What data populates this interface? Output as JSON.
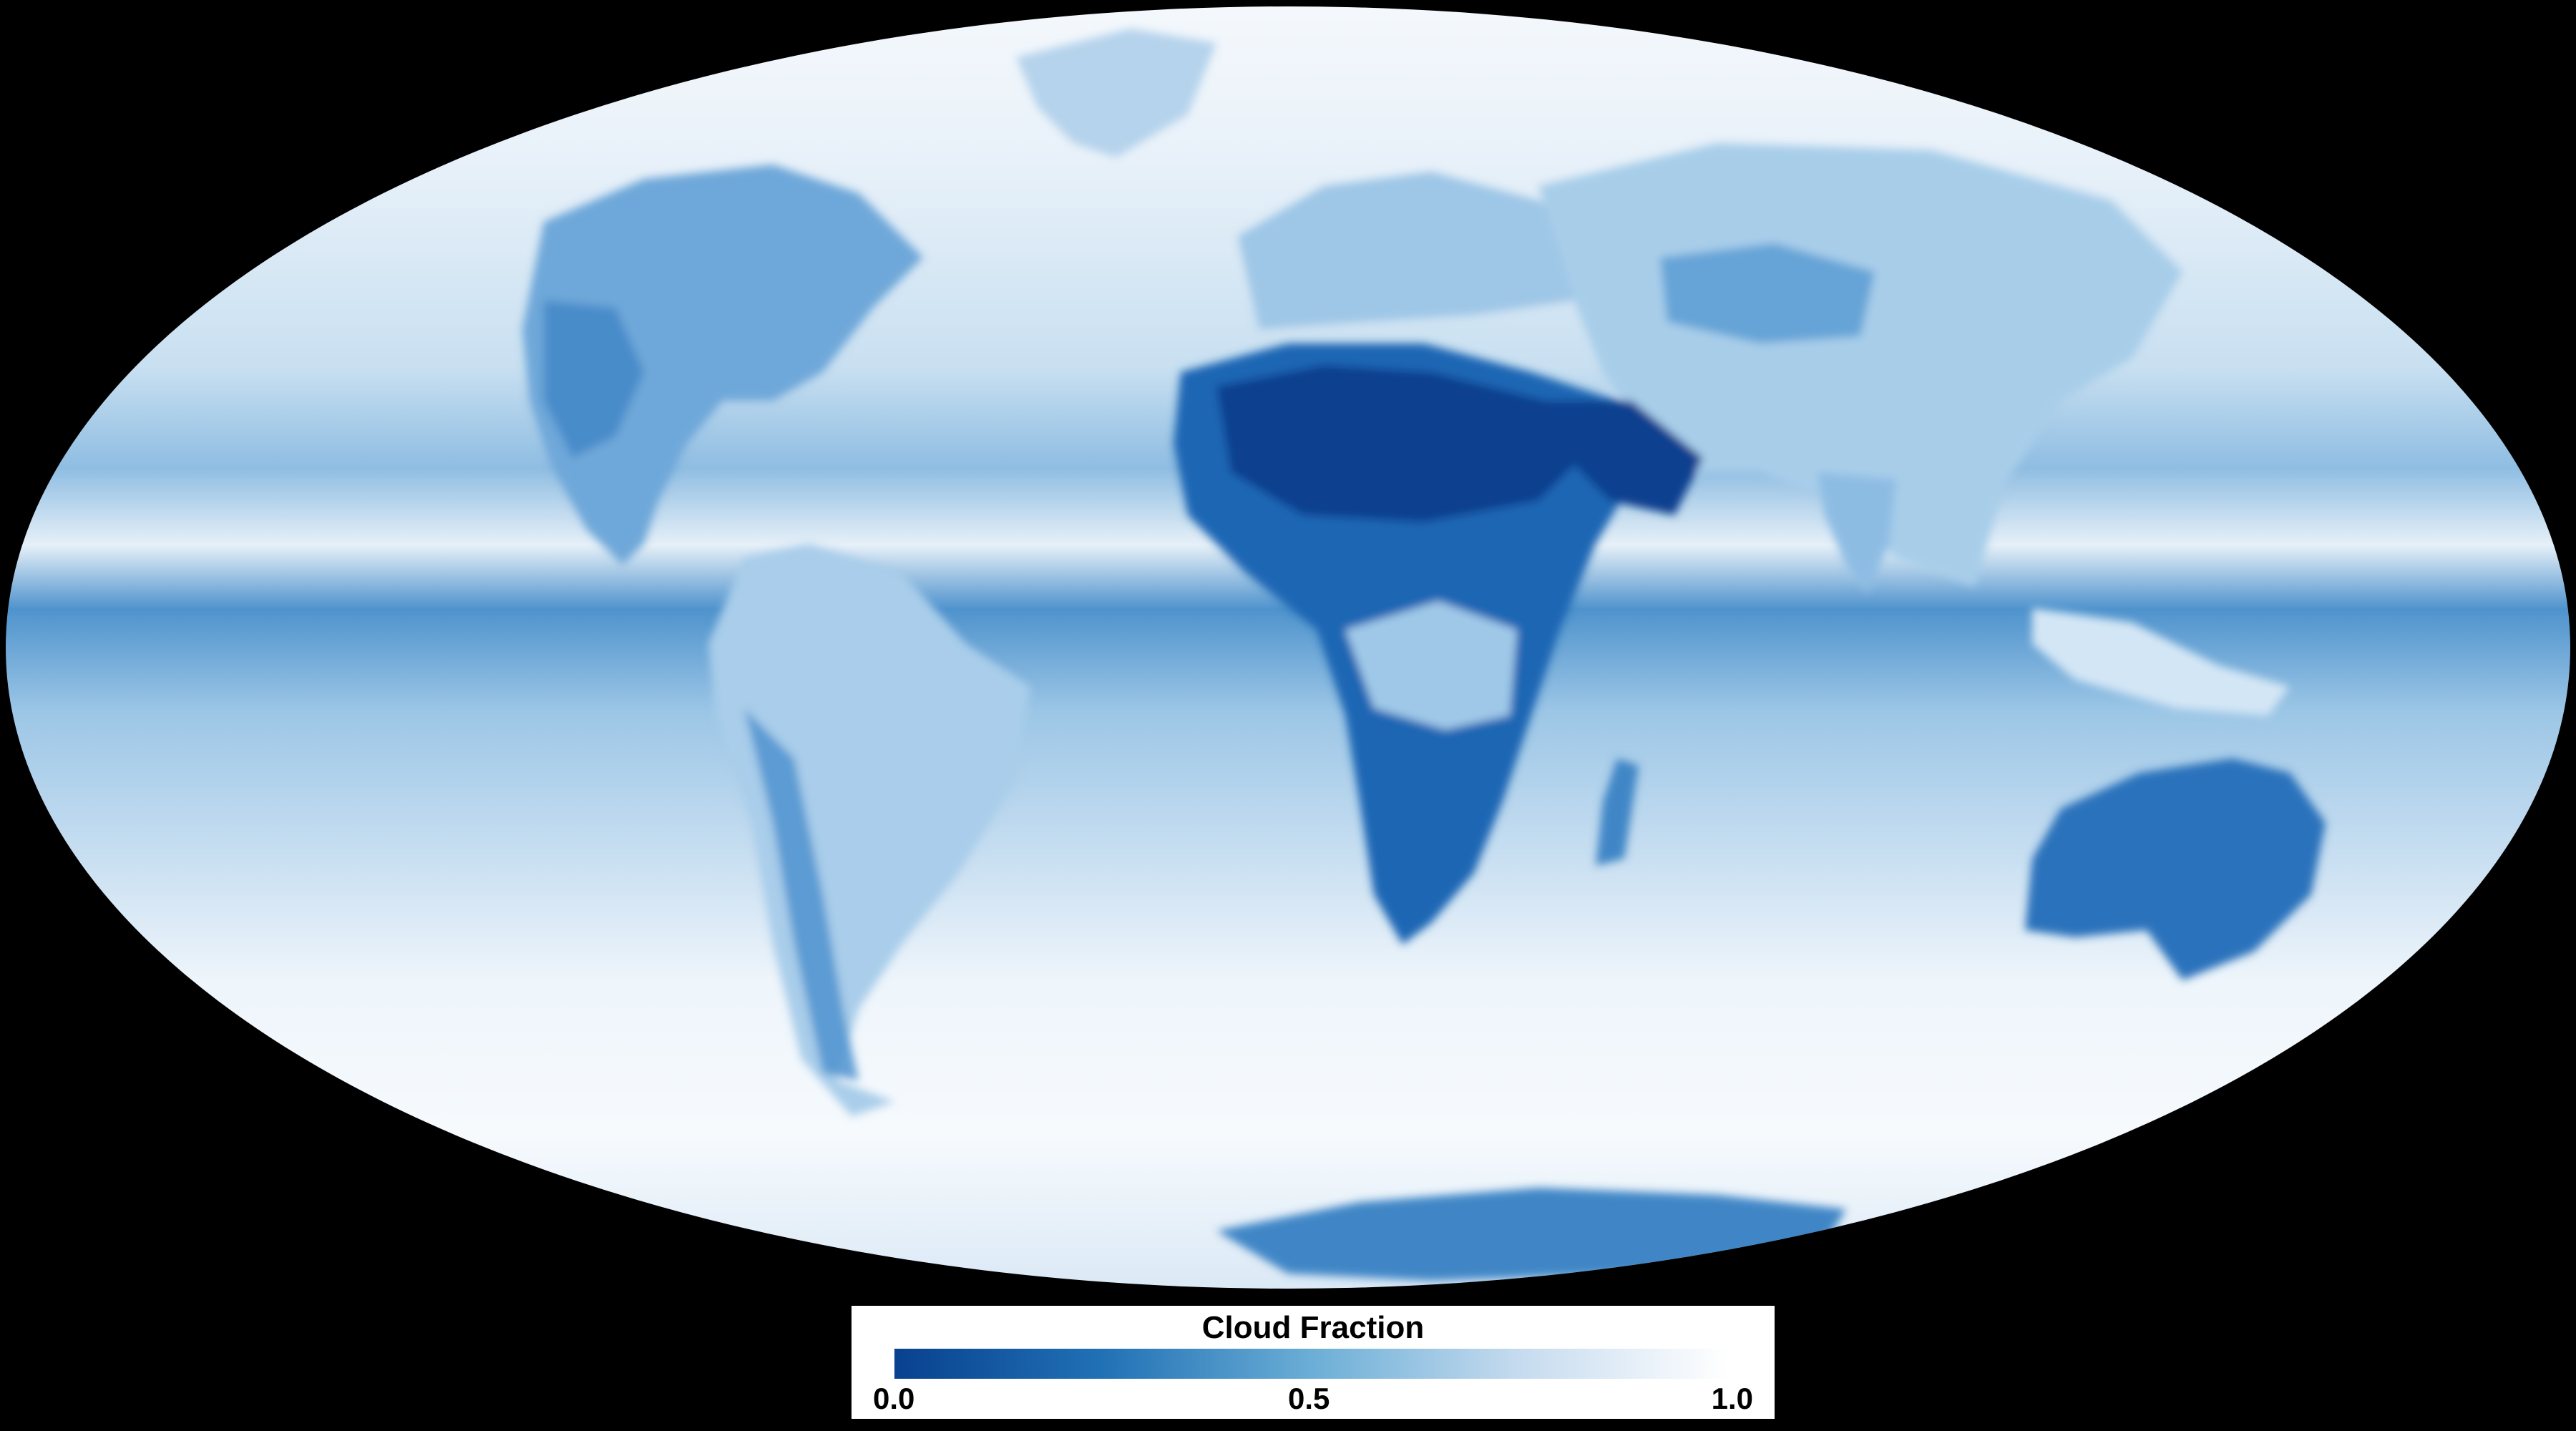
{
  "map": {
    "projection": "Mollweide",
    "background_color": "#000000",
    "ocean_color": "#bcd9ee",
    "land_shade_color": "#1f66b4",
    "clear_sky_color": "#08418f",
    "cloudy_color": "#f5f9fd"
  },
  "legend": {
    "title": "Cloud Fraction",
    "min_label": "0.0",
    "mid_label": "0.5",
    "max_label": "1.0",
    "colors": [
      "#08418f",
      "#2171b5",
      "#6baed6",
      "#c6dbef",
      "#ffffff"
    ]
  }
}
